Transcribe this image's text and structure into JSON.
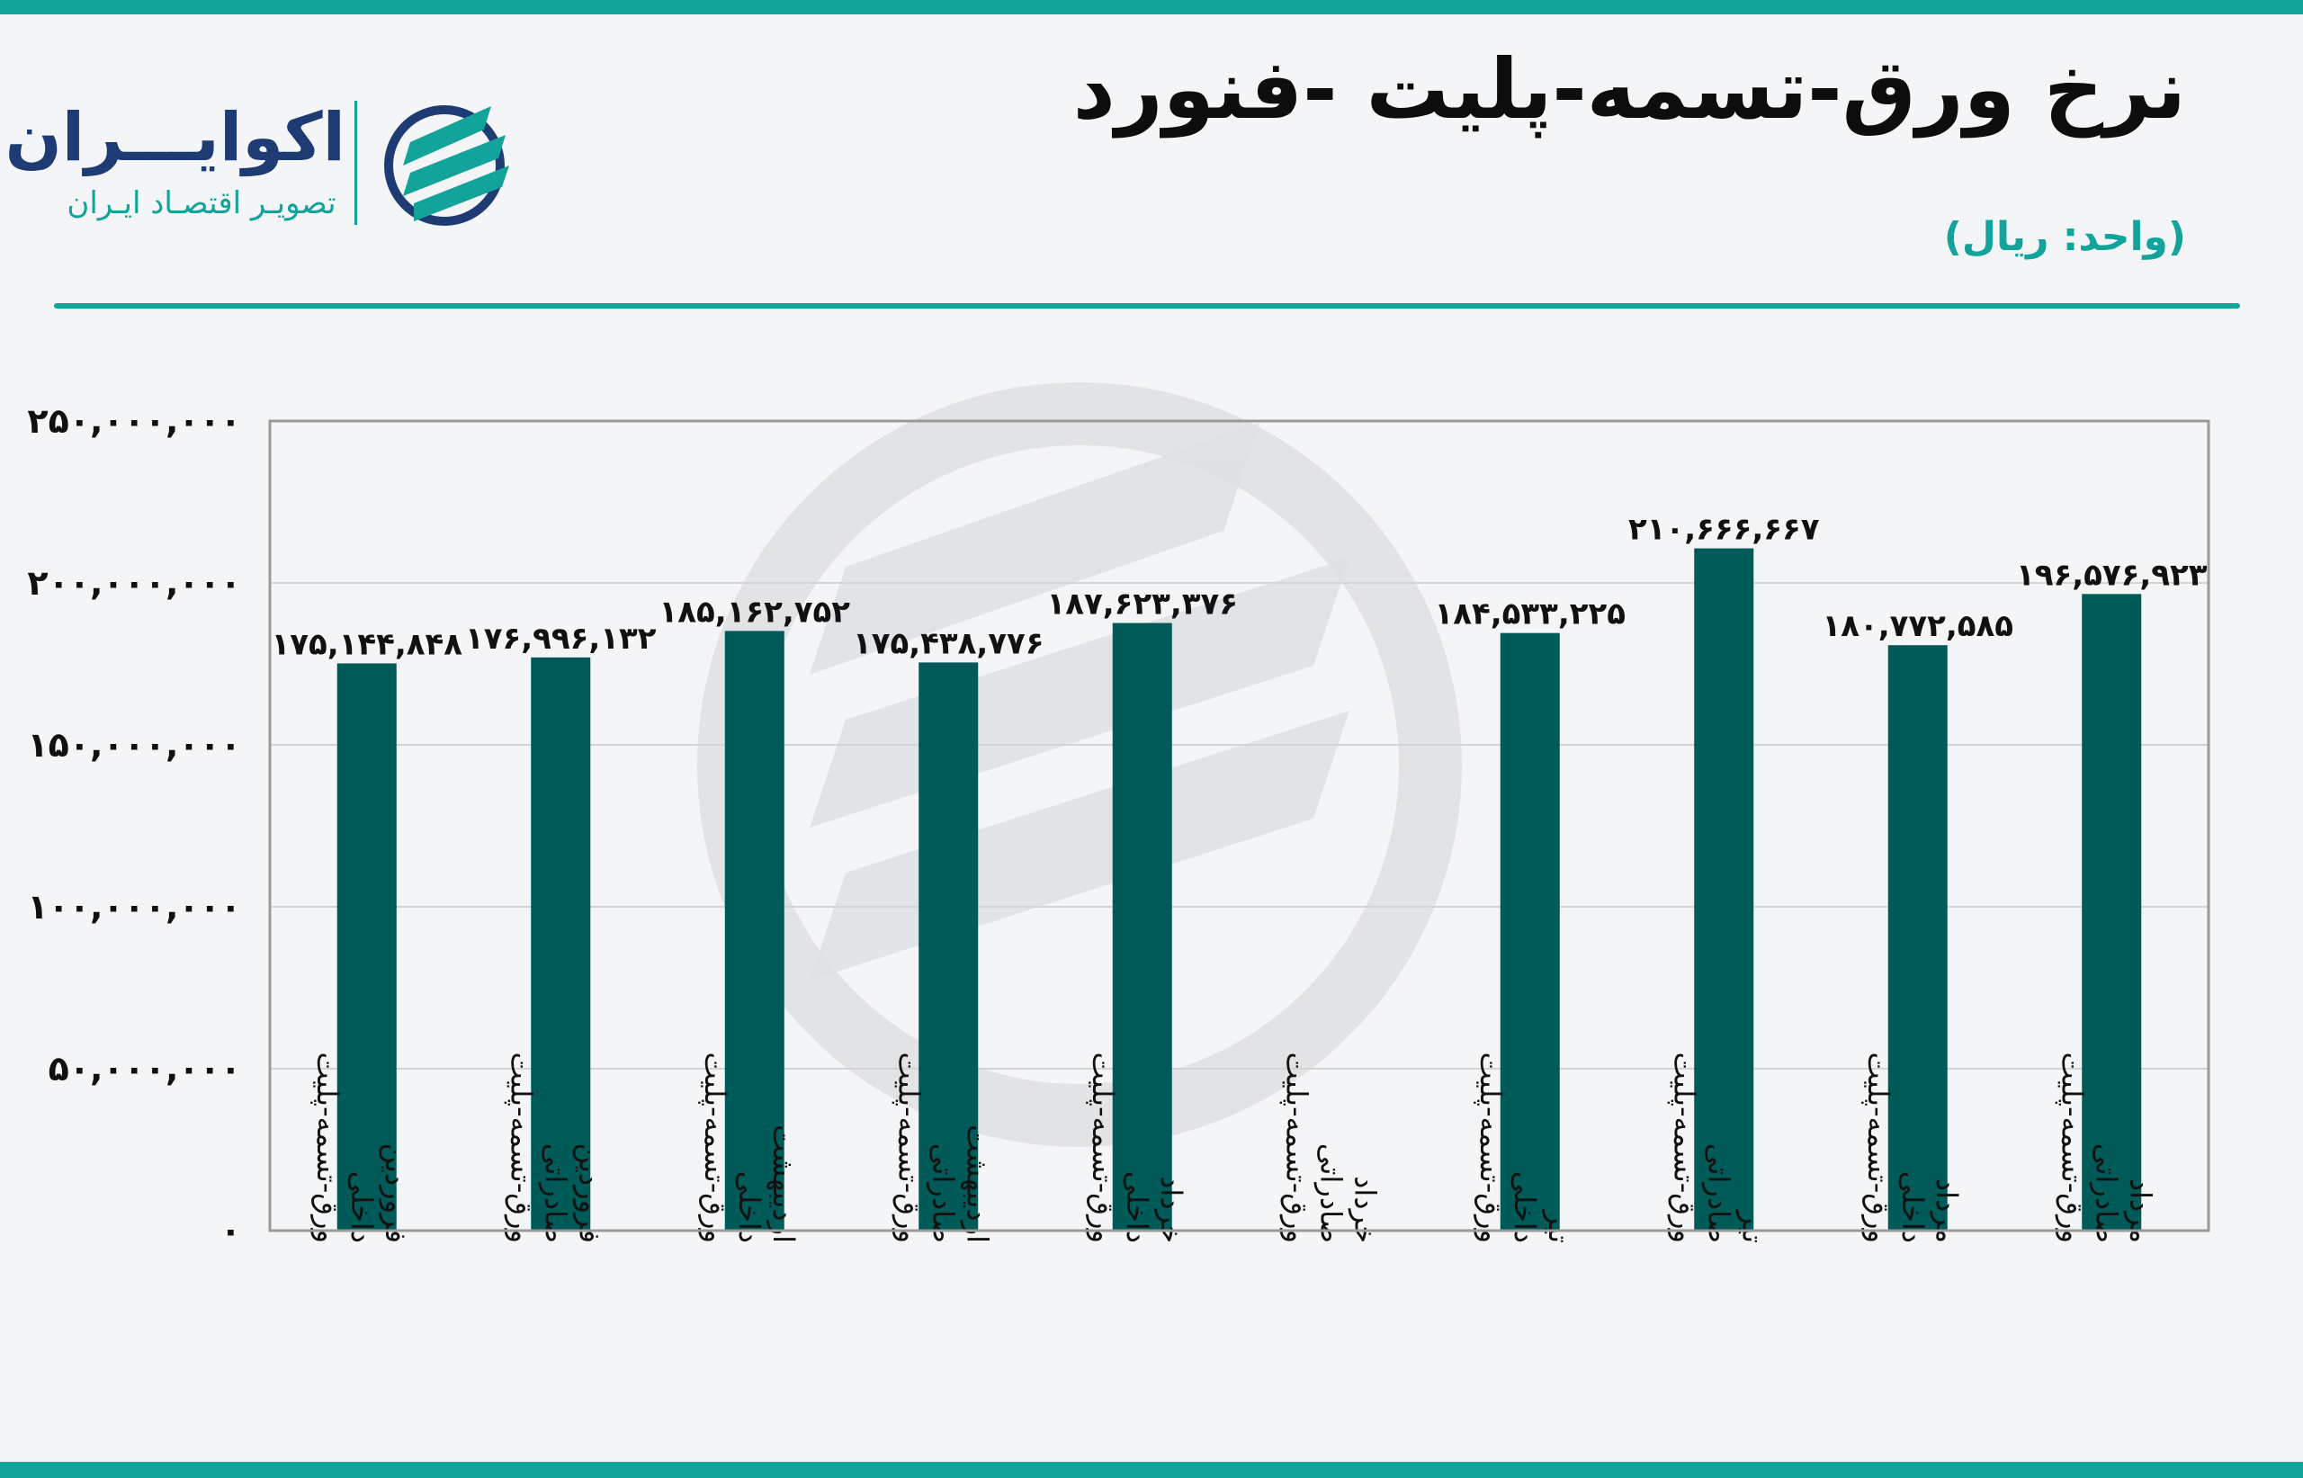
{
  "colors": {
    "teal": "#12a39a",
    "bar": "#005a57",
    "logo_blue": "#1f3b73",
    "text": "#0d0d0d"
  },
  "header": {
    "title": "نرخ ورق-تسمه-پلیت -فنورد",
    "unit": "(واحد: ریال)"
  },
  "logo": {
    "name": "اکوایـــران",
    "tagline": "تصویـر اقتصـاد ایـران"
  },
  "chart_data": {
    "type": "bar",
    "categories": [
      [
        "ورق-تسمه-پلیت",
        "داخلی",
        "فروردین"
      ],
      [
        "ورق-تسمه-پلیت",
        "صادراتی",
        "فروردین"
      ],
      [
        "ورق-تسمه-پلیت",
        "داخلی",
        "اردیبهشت"
      ],
      [
        "ورق-تسمه-پلیت",
        "صادراتی",
        "اردیبهشت"
      ],
      [
        "ورق-تسمه-پلیت",
        "داخلی",
        "خرداد"
      ],
      [
        "ورق-تسمه-پلیت",
        "صادراتی",
        "خرداد"
      ],
      [
        "ورق-تسمه-پلیت",
        "داخلی",
        "تیر"
      ],
      [
        "ورق-تسمه-پلیت",
        "صادراتی",
        "تیر"
      ],
      [
        "ورق-تسمه-پلیت",
        "داخلی",
        "مرداد"
      ],
      [
        "ورق-تسمه-پلیت",
        "صادراتی",
        "مرداد"
      ]
    ],
    "values": [
      175144848,
      176996132,
      185162752,
      175438776,
      187623376,
      null,
      184533225,
      210666667,
      180772585,
      196576923
    ],
    "data_labels": [
      "۱۷۵,۱۴۴,۸۴۸",
      "۱۷۶,۹۹۶,۱۳۲",
      "۱۸۵,۱۶۲,۷۵۲",
      "۱۷۵,۴۳۸,۷۷۶",
      "۱۸۷,۶۲۳,۳۷۶",
      "",
      "۱۸۴,۵۳۳,۲۲۵",
      "۲۱۰,۶۶۶,۶۶۷",
      "۱۸۰,۷۷۲,۵۸۵",
      "۱۹۶,۵۷۶,۹۲۳"
    ],
    "ylim": [
      0,
      250000000
    ],
    "yticks": [
      0,
      50000000,
      100000000,
      150000000,
      200000000,
      250000000
    ],
    "ytick_labels": [
      "۰",
      "۵۰,۰۰۰,۰۰۰",
      "۱۰۰,۰۰۰,۰۰۰",
      "۱۵۰,۰۰۰,۰۰۰",
      "۲۰۰,۰۰۰,۰۰۰",
      "۲۵۰,۰۰۰,۰۰۰"
    ],
    "grid": true,
    "legend": false
  }
}
